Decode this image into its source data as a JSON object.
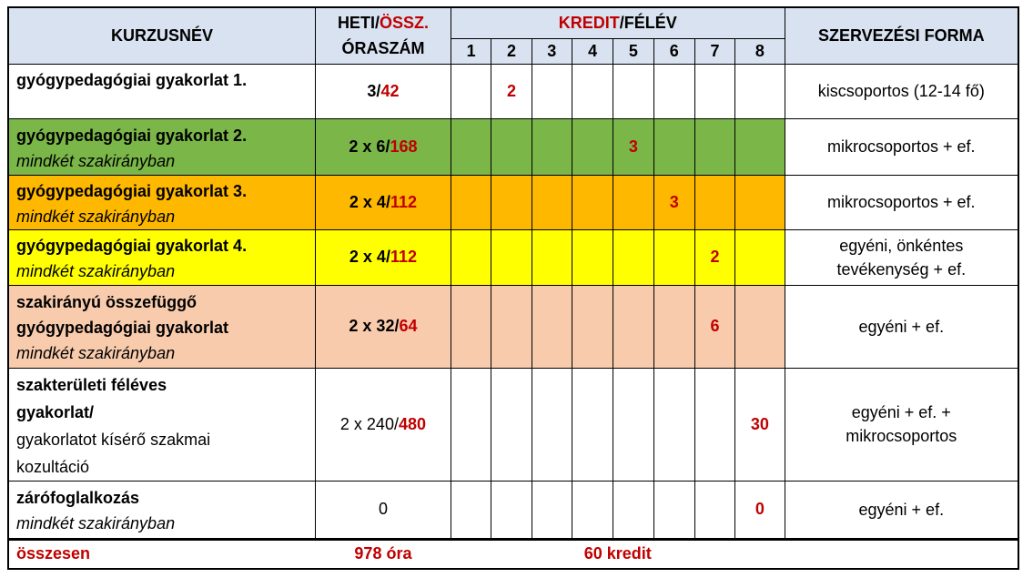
{
  "header": {
    "col_name": "KURZUSNÉV",
    "col_hours_line1_a": "HETI/",
    "col_hours_line1_b": "ÖSSZ.",
    "col_hours_line2": "ÓRASZÁM",
    "col_credit_a": "KREDIT",
    "col_credit_b": "/FÉLÉV",
    "semesters": [
      "1",
      "2",
      "3",
      "4",
      "5",
      "6",
      "7",
      "8"
    ],
    "col_form": "SZERVEZÉSI FORMA"
  },
  "rows": [
    {
      "name": "gyógypedagógiai gyakorlat 1.",
      "sub": "",
      "hours_weekly": "3/",
      "hours_total": "42",
      "credits": [
        "",
        "2",
        "",
        "",
        "",
        "",
        "",
        ""
      ],
      "form": "kiscsoportos (12-14 fő)"
    },
    {
      "name": "gyógypedagógiai gyakorlat 2.",
      "sub": "mindkét szakirányban",
      "hours_weekly": "2 x 6/",
      "hours_total": "168",
      "credits": [
        "",
        "",
        "",
        "",
        "3",
        "",
        "",
        ""
      ],
      "form": "mikrocsoportos + ef."
    },
    {
      "name": "gyógypedagógiai gyakorlat 3.",
      "sub": "mindkét szakirányban",
      "hours_weekly": "2 x 4/",
      "hours_total": "112",
      "credits": [
        "",
        "",
        "",
        "",
        "",
        "3",
        "",
        ""
      ],
      "form": "mikrocsoportos + ef."
    },
    {
      "name": "gyógypedagógiai gyakorlat 4.",
      "sub": "mindkét szakirányban",
      "hours_weekly": "2 x 4/",
      "hours_total": "112",
      "credits": [
        "",
        "",
        "",
        "",
        "",
        "",
        "2",
        ""
      ],
      "form_line1": "egyéni, önkéntes",
      "form_line2": "tevékenység + ef."
    },
    {
      "name_line1": "szakirányú összefüggő",
      "name_line2": "gyógypedagógiai gyakorlat",
      "sub": "mindkét szakirányban",
      "hours_weekly": "2 x 32/",
      "hours_total": "64",
      "credits": [
        "",
        "",
        "",
        "",
        "",
        "",
        "6",
        ""
      ],
      "form": "egyéni + ef."
    },
    {
      "name_line1": "szakterületi féléves",
      "name_line2": "gyakorlat/",
      "name_line3": "gyakorlatot kísérő szakmai",
      "name_line4": "kozultáció",
      "hours_weekly": "2 x 240/",
      "hours_total": "480",
      "credits": [
        "",
        "",
        "",
        "",
        "",
        "",
        "",
        "30"
      ],
      "form_line1": "egyéni + ef. +",
      "form_line2": "mikrocsoportos"
    },
    {
      "name": "zárófoglalkozás",
      "sub": "mindkét szakirányban",
      "hours": "0",
      "credits": [
        "",
        "",
        "",
        "",
        "",
        "",
        "",
        "0"
      ],
      "form": "egyéni + ef."
    }
  ],
  "total": {
    "label": "összesen",
    "hours": "978 óra",
    "credits": "60 kredit"
  },
  "colors": {
    "header_bg": "#d9e2f0",
    "green": "#7ab648",
    "orange": "#ffb800",
    "yellow": "#ffff00",
    "peach": "#f8cbad",
    "accent_red": "#c00000"
  }
}
